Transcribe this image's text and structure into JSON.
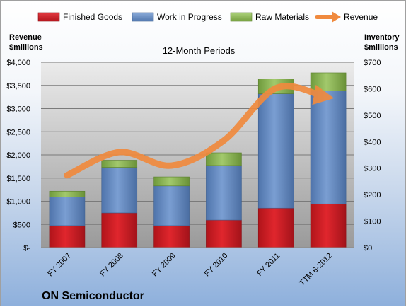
{
  "chart_data": {
    "type": "bar",
    "stacked": true,
    "title": "12-Month Periods",
    "company": "ON Semiconductor",
    "categories": [
      "FY 2007",
      "FY 2008",
      "FY 2009",
      "FY 2010",
      "FY 2011",
      "TTM 6-2012"
    ],
    "left_axis_title": [
      "Revenue",
      "$millions"
    ],
    "right_axis_title": [
      "Inventory",
      "$millions"
    ],
    "left_axis": {
      "ylim": [
        0,
        4000
      ],
      "ticks": [
        0,
        500,
        1000,
        1500,
        2000,
        2500,
        3000,
        3500,
        4000
      ],
      "tick_labels": [
        "$-",
        "$500",
        "$1,000",
        "$1,500",
        "$2,000",
        "$2,500",
        "$3,000",
        "$3,500",
        "$4,000"
      ]
    },
    "right_axis": {
      "ylim": [
        0,
        700
      ],
      "ticks": [
        0,
        100,
        200,
        300,
        400,
        500,
        600,
        700
      ],
      "tick_labels": [
        "$0",
        "$100",
        "$200",
        "$300",
        "$400",
        "$500",
        "$600",
        "$700"
      ]
    },
    "series": [
      {
        "name": "Finished Goods",
        "axis": "right",
        "color": "#d21f26",
        "values": [
          83,
          131,
          83,
          104,
          149,
          165
        ]
      },
      {
        "name": "Work in Progress",
        "axis": "right",
        "color": "#6b8fc4",
        "values": [
          108,
          172,
          150,
          206,
          432,
          427
        ]
      },
      {
        "name": "Raw Materials",
        "axis": "right",
        "color": "#8fb85a",
        "values": [
          22,
          27,
          34,
          48,
          56,
          68
        ]
      },
      {
        "name": "Revenue",
        "axis": "left",
        "type": "line",
        "color": "#f08a3e",
        "values": [
          1560,
          2060,
          1770,
          2310,
          3440,
          3260
        ]
      }
    ],
    "legend_position": "top",
    "grid": true
  }
}
